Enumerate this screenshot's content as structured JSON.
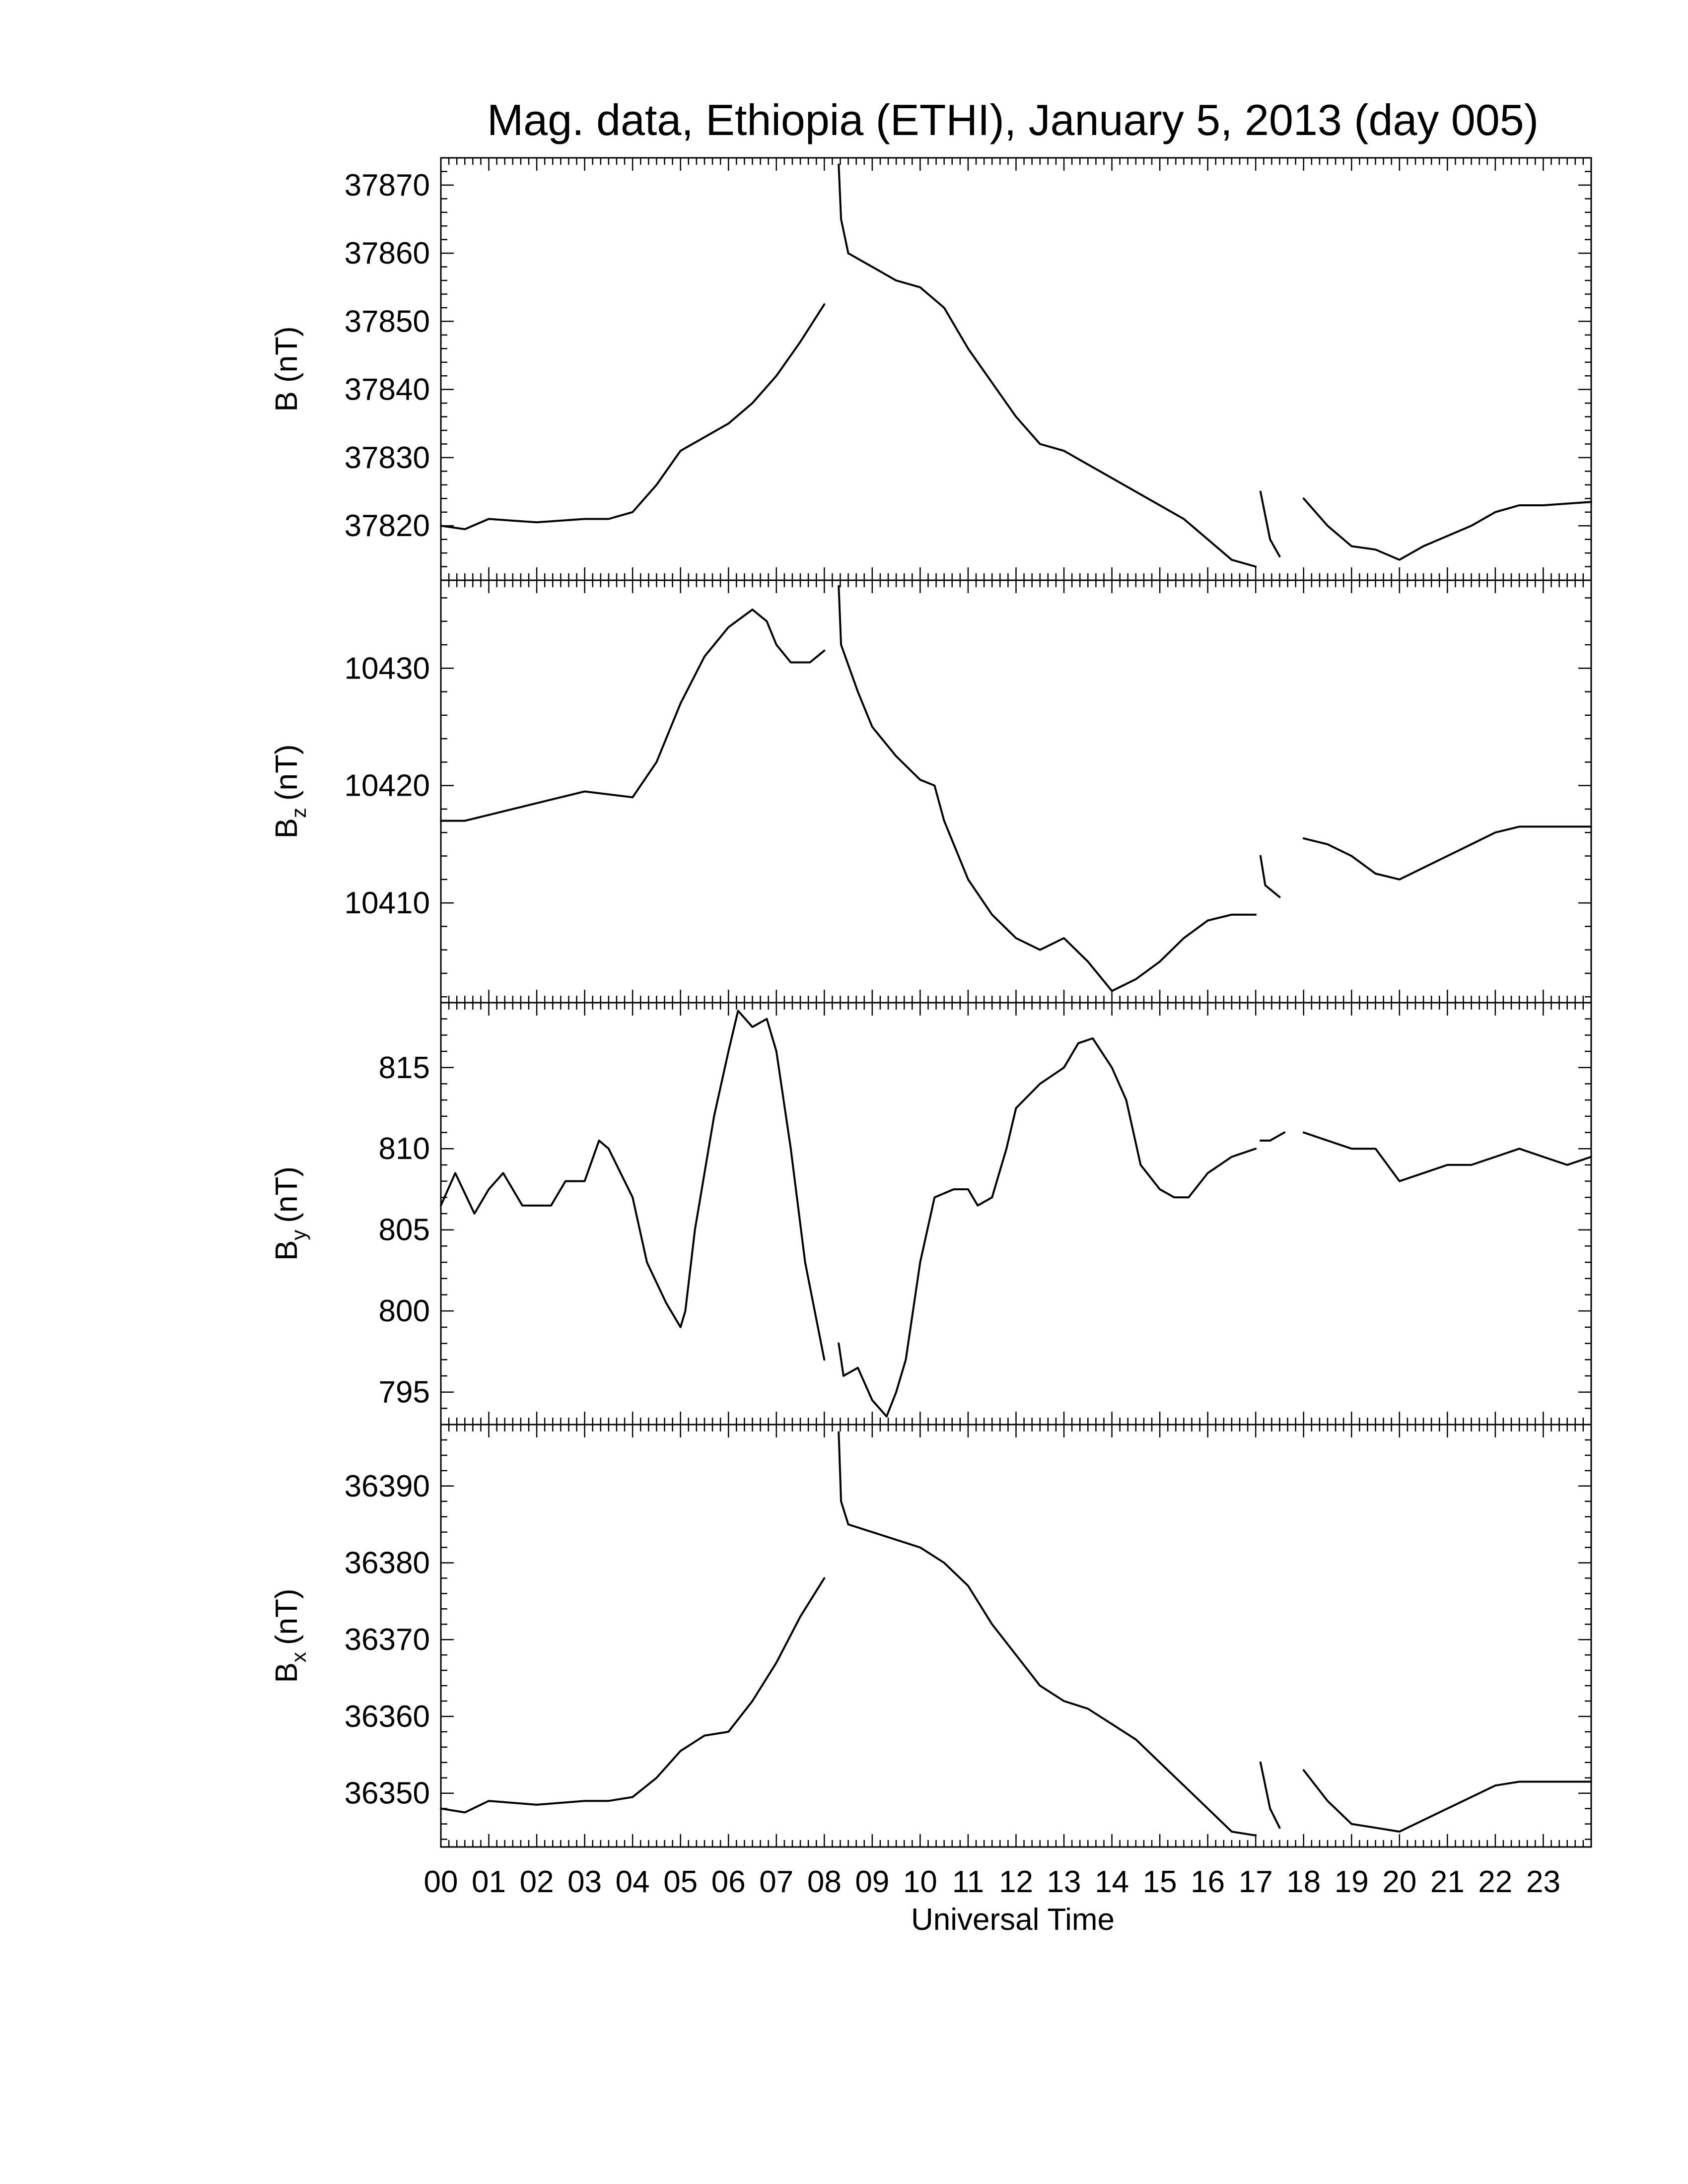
{
  "chart_data": {
    "type": "line",
    "title": "Mag. data, Ethiopia (ETHI), January 5, 2013 (day 005)",
    "xlabel": "Universal Time",
    "xlim": [
      0,
      24
    ],
    "x_tick_labels": [
      "00",
      "01",
      "02",
      "03",
      "04",
      "05",
      "06",
      "07",
      "08",
      "09",
      "10",
      "11",
      "12",
      "13",
      "14",
      "15",
      "16",
      "17",
      "18",
      "19",
      "20",
      "21",
      "22",
      "23"
    ],
    "panels": [
      {
        "ylabel": "B (nT)",
        "ylabel_main": "B",
        "ylabel_sub": "",
        "ylabel_unit": "(nT)",
        "ylim": [
          37812,
          37874
        ],
        "yticks": [
          37820,
          37830,
          37840,
          37850,
          37860,
          37870
        ],
        "segments": [
          [
            [
              0,
              37820
            ],
            [
              0.5,
              37819.5
            ],
            [
              1,
              37821
            ],
            [
              2,
              37820.5
            ],
            [
              3,
              37821
            ],
            [
              3.5,
              37821
            ],
            [
              4,
              37822
            ],
            [
              4.5,
              37826
            ],
            [
              5,
              37831
            ],
            [
              5.5,
              37833
            ],
            [
              6,
              37835
            ],
            [
              6.5,
              37838
            ],
            [
              7,
              37842
            ],
            [
              7.5,
              37847
            ],
            [
              8,
              37852.5
            ]
          ],
          [
            [
              8.3,
              37873
            ],
            [
              8.35,
              37865
            ],
            [
              8.5,
              37860
            ],
            [
              9,
              37858
            ],
            [
              9.5,
              37856
            ],
            [
              10,
              37855
            ],
            [
              10.5,
              37852
            ],
            [
              11,
              37846
            ],
            [
              11.5,
              37841
            ],
            [
              12,
              37836
            ],
            [
              12.5,
              37832
            ],
            [
              13,
              37831
            ],
            [
              13.5,
              37829
            ],
            [
              14,
              37827
            ],
            [
              14.5,
              37825
            ],
            [
              15,
              37823
            ],
            [
              15.5,
              37821
            ],
            [
              16,
              37818
            ],
            [
              16.5,
              37815
            ],
            [
              17,
              37814
            ]
          ],
          [
            [
              17.1,
              37825
            ],
            [
              17.3,
              37818
            ],
            [
              17.5,
              37815.5
            ]
          ],
          [
            [
              18,
              37824
            ],
            [
              18.5,
              37820
            ],
            [
              19,
              37817
            ],
            [
              19.5,
              37816.5
            ],
            [
              20,
              37815
            ],
            [
              20.5,
              37817
            ],
            [
              21,
              37818.5
            ],
            [
              21.5,
              37820
            ],
            [
              22,
              37822
            ],
            [
              22.5,
              37823
            ],
            [
              23,
              37823
            ],
            [
              24,
              37823.5
            ]
          ]
        ]
      },
      {
        "ylabel": "Bz (nT)",
        "ylabel_main": "B",
        "ylabel_sub": "z",
        "ylabel_unit": "(nT)",
        "ylim": [
          10401.5,
          10437.5
        ],
        "yticks": [
          10410,
          10420,
          10430
        ],
        "segments": [
          [
            [
              0,
              10417
            ],
            [
              0.5,
              10417
            ],
            [
              1,
              10417.5
            ],
            [
              2,
              10418.5
            ],
            [
              3,
              10419.5
            ],
            [
              4,
              10419
            ],
            [
              4.5,
              10422
            ],
            [
              5,
              10427
            ],
            [
              5.5,
              10431
            ],
            [
              6,
              10433.5
            ],
            [
              6.5,
              10435
            ],
            [
              6.8,
              10434
            ],
            [
              7,
              10432
            ],
            [
              7.3,
              10430.5
            ],
            [
              7.7,
              10430.5
            ],
            [
              8,
              10431.5
            ]
          ],
          [
            [
              8.3,
              10437
            ],
            [
              8.35,
              10432
            ],
            [
              8.7,
              10428
            ],
            [
              9,
              10425
            ],
            [
              9.5,
              10422.5
            ],
            [
              10,
              10420.5
            ],
            [
              10.3,
              10420
            ],
            [
              10.5,
              10417
            ],
            [
              11,
              10412
            ],
            [
              11.5,
              10409
            ],
            [
              12,
              10407
            ],
            [
              12.5,
              10406
            ],
            [
              13,
              10407
            ],
            [
              13.5,
              10405
            ],
            [
              14,
              10402.5
            ],
            [
              14.5,
              10403.5
            ],
            [
              15,
              10405
            ],
            [
              15.5,
              10407
            ],
            [
              16,
              10408.5
            ],
            [
              16.5,
              10409
            ],
            [
              17,
              10409
            ]
          ],
          [
            [
              17.1,
              10414
            ],
            [
              17.2,
              10411.5
            ],
            [
              17.5,
              10410.5
            ]
          ],
          [
            [
              18,
              10415.5
            ],
            [
              18.5,
              10415
            ],
            [
              19,
              10414
            ],
            [
              19.5,
              10412.5
            ],
            [
              20,
              10412
            ],
            [
              20.5,
              10413
            ],
            [
              21,
              10414
            ],
            [
              21.5,
              10415
            ],
            [
              22,
              10416
            ],
            [
              22.5,
              10416.5
            ],
            [
              23,
              10416.5
            ],
            [
              24,
              10416.5
            ]
          ]
        ]
      },
      {
        "ylabel": "By (nT)",
        "ylabel_main": "B",
        "ylabel_sub": "y",
        "ylabel_unit": "(nT)",
        "ylim": [
          793,
          819
        ],
        "yticks": [
          795,
          800,
          805,
          810,
          815
        ],
        "segments": [
          [
            [
              0,
              806.5
            ],
            [
              0.3,
              808.5
            ],
            [
              0.7,
              806
            ],
            [
              1,
              807.5
            ],
            [
              1.3,
              808.5
            ],
            [
              1.7,
              806.5
            ],
            [
              2,
              806.5
            ],
            [
              2.3,
              806.5
            ],
            [
              2.6,
              808
            ],
            [
              3,
              808
            ],
            [
              3.3,
              810.5
            ],
            [
              3.5,
              810
            ],
            [
              4,
              807
            ],
            [
              4.3,
              803
            ],
            [
              4.7,
              800.5
            ],
            [
              5,
              799
            ],
            [
              5.1,
              800
            ],
            [
              5.3,
              805
            ],
            [
              5.7,
              812
            ],
            [
              6,
              816
            ],
            [
              6.2,
              818.5
            ],
            [
              6.5,
              817.5
            ],
            [
              6.8,
              818
            ],
            [
              7,
              816
            ],
            [
              7.3,
              810
            ],
            [
              7.6,
              803
            ],
            [
              8,
              797
            ]
          ],
          [
            [
              8.3,
              798
            ],
            [
              8.4,
              796
            ],
            [
              8.7,
              796.5
            ],
            [
              9,
              794.5
            ],
            [
              9.3,
              793.5
            ],
            [
              9.5,
              795
            ],
            [
              9.7,
              797
            ],
            [
              10,
              803
            ],
            [
              10.3,
              807
            ],
            [
              10.7,
              807.5
            ],
            [
              11,
              807.5
            ],
            [
              11.2,
              806.5
            ],
            [
              11.5,
              807
            ],
            [
              11.8,
              810
            ],
            [
              12,
              812.5
            ],
            [
              12.5,
              814
            ],
            [
              13,
              815
            ],
            [
              13.3,
              816.5
            ],
            [
              13.6,
              816.8
            ],
            [
              14,
              815
            ],
            [
              14.3,
              813
            ],
            [
              14.6,
              809
            ],
            [
              15,
              807.5
            ],
            [
              15.3,
              807
            ],
            [
              15.6,
              807
            ],
            [
              16,
              808.5
            ],
            [
              16.5,
              809.5
            ],
            [
              17,
              810
            ]
          ],
          [
            [
              17.1,
              810.5
            ],
            [
              17.3,
              810.5
            ],
            [
              17.6,
              811
            ]
          ],
          [
            [
              18,
              811
            ],
            [
              18.5,
              810.5
            ],
            [
              19,
              810
            ],
            [
              19.5,
              810
            ],
            [
              20,
              808
            ],
            [
              20.5,
              808.5
            ],
            [
              21,
              809
            ],
            [
              21.5,
              809
            ],
            [
              22,
              809.5
            ],
            [
              22.5,
              810
            ],
            [
              23,
              809.5
            ],
            [
              23.5,
              809
            ],
            [
              24,
              809.5
            ]
          ]
        ]
      },
      {
        "ylabel": "Bx (nT)",
        "ylabel_main": "B",
        "ylabel_sub": "x",
        "ylabel_unit": "(nT)",
        "ylim": [
          36343,
          36398
        ],
        "yticks": [
          36350,
          36360,
          36370,
          36380,
          36390
        ],
        "segments": [
          [
            [
              0,
              36348
            ],
            [
              0.5,
              36347.5
            ],
            [
              1,
              36349
            ],
            [
              2,
              36348.5
            ],
            [
              3,
              36349
            ],
            [
              3.5,
              36349
            ],
            [
              4,
              36349.5
            ],
            [
              4.5,
              36352
            ],
            [
              5,
              36355.5
            ],
            [
              5.5,
              36357.5
            ],
            [
              6,
              36358
            ],
            [
              6.5,
              36362
            ],
            [
              7,
              36367
            ],
            [
              7.5,
              36373
            ],
            [
              8,
              36378
            ]
          ],
          [
            [
              8.3,
              36397
            ],
            [
              8.35,
              36388
            ],
            [
              8.5,
              36385
            ],
            [
              9,
              36384
            ],
            [
              9.5,
              36383
            ],
            [
              10,
              36382
            ],
            [
              10.5,
              36380
            ],
            [
              11,
              36377
            ],
            [
              11.5,
              36372
            ],
            [
              12,
              36368
            ],
            [
              12.5,
              36364
            ],
            [
              13,
              36362
            ],
            [
              13.5,
              36361
            ],
            [
              14,
              36359
            ],
            [
              14.5,
              36357
            ],
            [
              15,
              36354
            ],
            [
              15.5,
              36351
            ],
            [
              16,
              36348
            ],
            [
              16.5,
              36345
            ],
            [
              17,
              36344.5
            ]
          ],
          [
            [
              17.1,
              36354
            ],
            [
              17.3,
              36348
            ],
            [
              17.5,
              36345.5
            ]
          ],
          [
            [
              18,
              36353
            ],
            [
              18.5,
              36349
            ],
            [
              19,
              36346
            ],
            [
              19.5,
              36345.5
            ],
            [
              20,
              36345
            ],
            [
              20.5,
              36346.5
            ],
            [
              21,
              36348
            ],
            [
              21.5,
              36349.5
            ],
            [
              22,
              36351
            ],
            [
              22.5,
              36351.5
            ],
            [
              23,
              36351.5
            ],
            [
              24,
              36351.5
            ]
          ]
        ]
      }
    ]
  }
}
